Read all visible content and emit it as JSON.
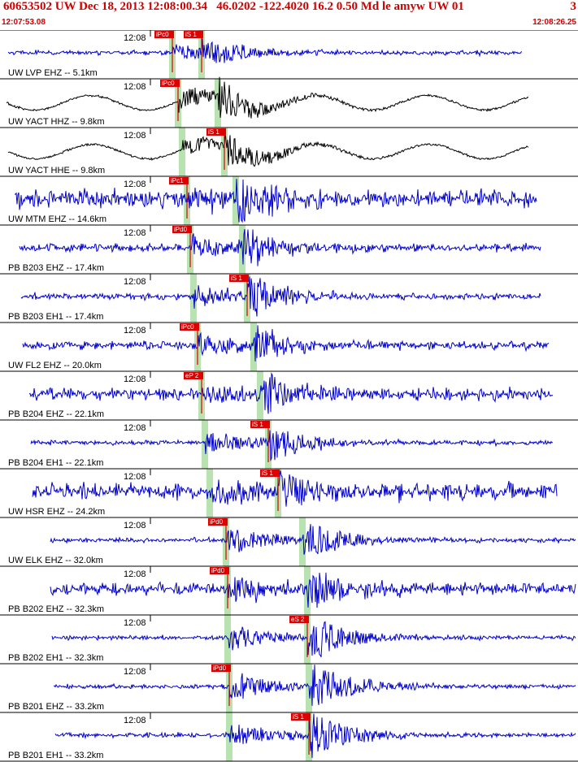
{
  "header": {
    "title": "60653502 UW Dec 18, 2013 12:08:00.34   46.0202 -122.4020 16.2 0.50 Md le amyw UW 01",
    "page_number": "3",
    "start_time": "12:07:53.08",
    "end_time": "12:08:26.25"
  },
  "colors": {
    "header_text": "#d00000",
    "trace_default": "#0000cc",
    "trace_broadband": "#000000",
    "pick_marker": "#dd0000",
    "predicted_band": "#b8e2b0",
    "frame": "#000000"
  },
  "chart_data": {
    "type": "line",
    "title": "60653502 UW Dec 18, 2013 12:08:00.34",
    "x_range": [
      "12:07:53.08",
      "12:08:26.25"
    ],
    "time_tick_label": "12:08",
    "traces": [
      {
        "label": "UW LVP EHZ -- 5.1km",
        "color": "trace_default",
        "p_pick": "iPc0",
        "s_pick": "iS 1"
      },
      {
        "label": "UW YACT HHZ -- 9.8km",
        "color": "trace_broadband",
        "p_pick": "iPc0",
        "s_pick": ""
      },
      {
        "label": "UW YACT HHE -- 9.8km",
        "color": "trace_broadband",
        "p_pick": "",
        "s_pick": "iS 1"
      },
      {
        "label": "UW MTM EHZ -- 14.6km",
        "color": "trace_default",
        "p_pick": "iPc1",
        "s_pick": ""
      },
      {
        "label": "PB B203 EHZ -- 17.4km",
        "color": "trace_default",
        "p_pick": "iPd0",
        "s_pick": ""
      },
      {
        "label": "PB B203 EH1 -- 17.4km",
        "color": "trace_default",
        "p_pick": "",
        "s_pick": "iS 1"
      },
      {
        "label": "UW FL2 EHZ -- 20.0km",
        "color": "trace_default",
        "p_pick": "iPc0",
        "s_pick": ""
      },
      {
        "label": "PB B204 EHZ -- 22.1km",
        "color": "trace_default",
        "p_pick": "eP 2",
        "s_pick": ""
      },
      {
        "label": "PB B204 EH1 -- 22.1km",
        "color": "trace_default",
        "p_pick": "",
        "s_pick": "iS 1"
      },
      {
        "label": "UW HSR EHZ -- 24.2km",
        "color": "trace_default",
        "p_pick": "",
        "s_pick": "iS 1"
      },
      {
        "label": "UW ELK EHZ -- 32.0km",
        "color": "trace_default",
        "p_pick": "iPd0",
        "s_pick": ""
      },
      {
        "label": "PB B202 EHZ -- 32.3km",
        "color": "trace_default",
        "p_pick": "iPd0",
        "s_pick": ""
      },
      {
        "label": "PB B202 EH1 -- 32.3km",
        "color": "trace_default",
        "p_pick": "",
        "s_pick": "eS 2"
      },
      {
        "label": "PB B201 EHZ -- 33.2km",
        "color": "trace_default",
        "p_pick": "iPd0",
        "s_pick": ""
      },
      {
        "label": "PB B201 EH1 -- 33.2km",
        "color": "trace_default",
        "p_pick": "",
        "s_pick": "iS 1"
      }
    ]
  }
}
